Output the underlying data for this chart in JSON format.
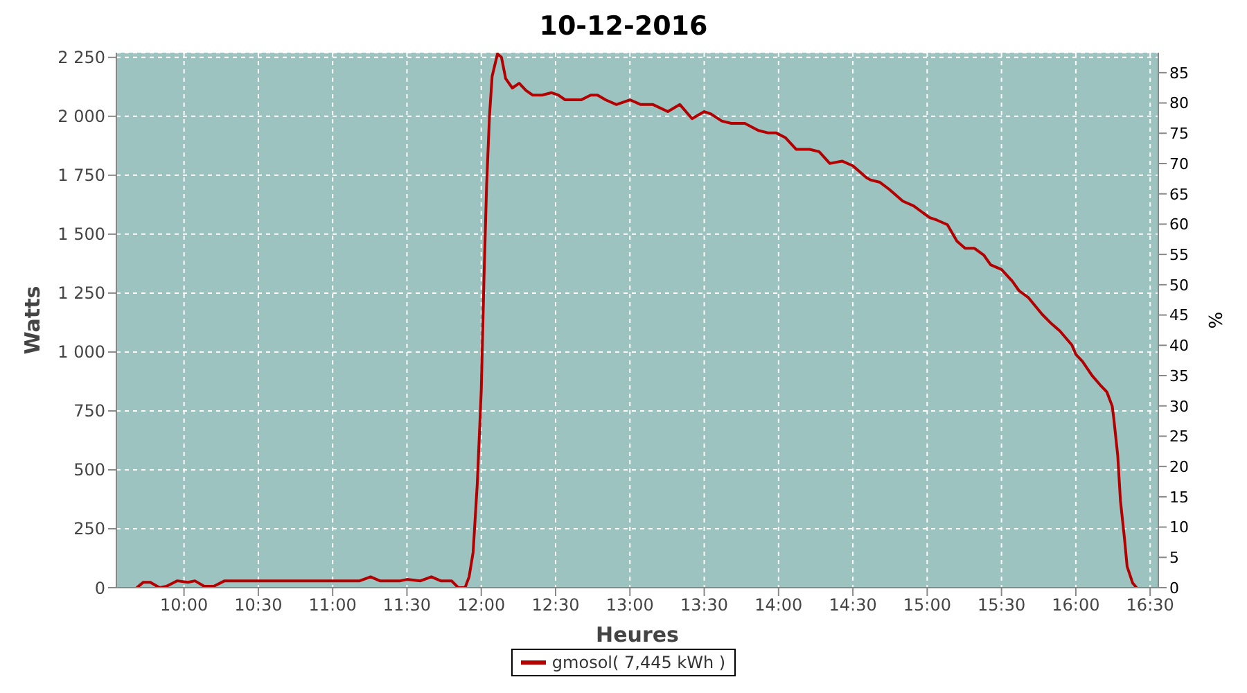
{
  "chart_data": {
    "type": "line",
    "title": "10-12-2016",
    "xlabel": "Heures",
    "ylabel": "Watts",
    "y2label": "%",
    "xlim": [
      9.545,
      16.555
    ],
    "xticks": [
      {
        "value": 10,
        "label": "10:00"
      },
      {
        "value": 10.5,
        "label": "10:30"
      },
      {
        "value": 11,
        "label": "11:00"
      },
      {
        "value": 11.5,
        "label": "11:30"
      },
      {
        "value": 12,
        "label": "12:00"
      },
      {
        "value": 12.5,
        "label": "12:30"
      },
      {
        "value": 13,
        "label": "13:00"
      },
      {
        "value": 13.5,
        "label": "13:30"
      },
      {
        "value": 14,
        "label": "14:00"
      },
      {
        "value": 14.5,
        "label": "14:30"
      },
      {
        "value": 15,
        "label": "15:00"
      },
      {
        "value": 15.5,
        "label": "15:30"
      },
      {
        "value": 16,
        "label": "16:00"
      },
      {
        "value": 16.5,
        "label": "16:30"
      }
    ],
    "ylim": [
      0,
      2270
    ],
    "yticks": [
      0,
      250,
      500,
      750,
      {
        "value": 1000,
        "label": "1 000"
      },
      {
        "value": 1250,
        "label": "1 250"
      },
      {
        "value": 1500,
        "label": "1 500"
      },
      {
        "value": 1750,
        "label": "1 750"
      },
      {
        "value": 2000,
        "label": "2 000"
      },
      {
        "value": 2250,
        "label": "2 250"
      }
    ],
    "y2lim": [
      0,
      88.3
    ],
    "y2ticks": [
      0,
      5,
      10,
      15,
      20,
      25,
      30,
      35,
      40,
      45,
      50,
      55,
      60,
      65,
      70,
      75,
      80,
      85
    ],
    "grid": true,
    "legend": "bottom",
    "marker": "none",
    "line_style": "solid",
    "series": [
      {
        "name": "gmosol( 7,445 kWh )",
        "color": "#b30000",
        "x": [
          9.682,
          9.727,
          9.773,
          9.836,
          9.882,
          9.955,
          10.027,
          10.073,
          10.136,
          10.2,
          10.273,
          10.364,
          11.182,
          11.255,
          11.318,
          11.455,
          11.5,
          11.591,
          11.664,
          11.727,
          11.8,
          11.845,
          11.891,
          11.918,
          11.945,
          11.973,
          12.0,
          12.018,
          12.036,
          12.055,
          12.073,
          12.109,
          12.136,
          12.164,
          12.209,
          12.255,
          12.3,
          12.345,
          12.409,
          12.473,
          12.518,
          12.564,
          12.673,
          12.736,
          12.782,
          12.836,
          12.909,
          13.0,
          13.073,
          13.155,
          13.255,
          13.336,
          13.418,
          13.5,
          13.545,
          13.618,
          13.682,
          13.773,
          13.864,
          13.927,
          13.982,
          14.045,
          14.118,
          14.209,
          14.273,
          14.345,
          14.427,
          14.5,
          14.591,
          14.618,
          14.682,
          14.745,
          14.836,
          14.909,
          14.973,
          15.018,
          15.064,
          15.136,
          15.2,
          15.255,
          15.318,
          15.382,
          15.427,
          15.5,
          15.573,
          15.618,
          15.682,
          15.773,
          15.836,
          15.891,
          15.973,
          16.0,
          16.045,
          16.109,
          16.164,
          16.209,
          16.245,
          16.255,
          16.282,
          16.3,
          16.327,
          16.345,
          16.382,
          16.409
        ],
        "values": [
          0,
          23,
          23,
          0,
          6,
          29,
          23,
          29,
          6,
          6,
          29,
          29,
          29,
          46,
          29,
          29,
          35,
          29,
          46,
          29,
          29,
          0,
          0,
          46,
          150,
          440,
          840,
          1310,
          1710,
          2000,
          2170,
          2265,
          2250,
          2160,
          2120,
          2140,
          2110,
          2090,
          2090,
          2100,
          2090,
          2070,
          2070,
          2090,
          2090,
          2070,
          2050,
          2070,
          2050,
          2050,
          2020,
          2050,
          1990,
          2020,
          2010,
          1980,
          1970,
          1970,
          1940,
          1930,
          1930,
          1910,
          1860,
          1860,
          1850,
          1800,
          1810,
          1790,
          1740,
          1730,
          1720,
          1690,
          1640,
          1620,
          1590,
          1570,
          1560,
          1540,
          1470,
          1440,
          1440,
          1410,
          1370,
          1350,
          1300,
          1260,
          1230,
          1160,
          1120,
          1090,
          1030,
          990,
          960,
          900,
          860,
          830,
          770,
          720,
          560,
          370,
          210,
          90,
          20,
          0
        ]
      }
    ]
  }
}
